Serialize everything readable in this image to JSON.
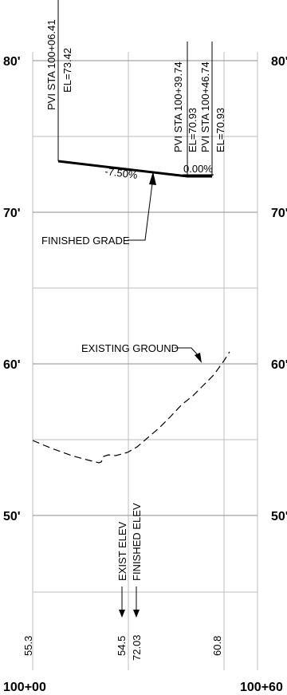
{
  "elevation_labels": {
    "e80_left": "80'",
    "e80_right": "80'",
    "e70_left": "70'",
    "e70_right": "70'",
    "e60_left": "60'",
    "e60_right": "60'",
    "e50_left": "50'",
    "e50_right": "50'"
  },
  "station_labels": {
    "start": "100+00",
    "end": "100+60"
  },
  "pvi": [
    {
      "station": "PVI STA 100+06.41",
      "elevation": "EL=73.42"
    },
    {
      "station": "PVI STA 100+39.74",
      "elevation": "EL=70.93"
    },
    {
      "station": "PVI STA 100+46.74",
      "elevation": "EL=70.93"
    }
  ],
  "grades": {
    "first": "-7.50%",
    "second": "0.00%"
  },
  "callouts": {
    "finished_grade": "FINISHED GRADE",
    "existing_ground": "EXISTING GROUND"
  },
  "bottom_labels": {
    "exist_elev": "EXIST ELEV",
    "finished_elev": "FINISHED ELEV",
    "values": [
      "55.3",
      "54.5",
      "72.03",
      "60.8"
    ]
  },
  "colors": {
    "line": "#000000",
    "grid": "#bdbdbd",
    "grid_major": "#8c8c8c"
  }
}
